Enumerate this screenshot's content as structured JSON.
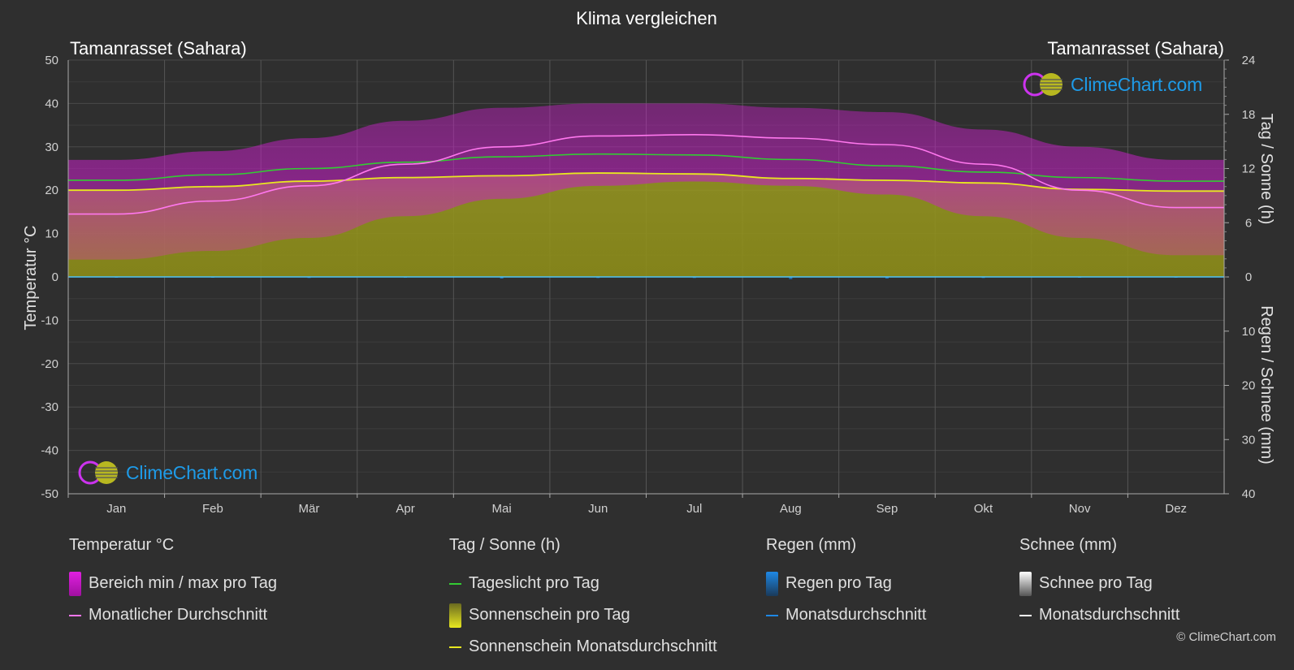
{
  "title": "Klima vergleichen",
  "location_left": "Tamanrasset (Sahara)",
  "location_right": "Tamanrasset (Sahara)",
  "watermark": "ClimeChart.com",
  "copyright": "© ClimeChart.com",
  "colors": {
    "background": "#2f2f2f",
    "temp_range": "#d020d0",
    "temp_avg": "#ff77ee",
    "daylight": "#33cc33",
    "sunshine_fill": "#a8a820",
    "sunshine_avg": "#e8e820",
    "rain": "#1e88e5",
    "snow": "#ffffff"
  },
  "chart_data": {
    "type": "area",
    "months": [
      "Jan",
      "Feb",
      "Mär",
      "Apr",
      "Mai",
      "Jun",
      "Jul",
      "Aug",
      "Sep",
      "Okt",
      "Nov",
      "Dez"
    ],
    "axes": {
      "left": {
        "label": "Temperatur °C",
        "ticks": [
          50,
          40,
          30,
          20,
          10,
          0,
          -10,
          -20,
          -30,
          -40,
          -50
        ],
        "range": [
          -50,
          50
        ]
      },
      "right_top": {
        "label": "Tag / Sonne (h)",
        "ticks": [
          24,
          18,
          12,
          6,
          0
        ],
        "range": [
          0,
          24
        ]
      },
      "right_bottom": {
        "label": "Regen / Schnee (mm)",
        "ticks": [
          0,
          10,
          20,
          30,
          40
        ],
        "range": [
          0,
          40
        ]
      }
    },
    "series": {
      "temp_max": [
        27,
        29,
        32,
        36,
        39,
        40,
        40,
        39,
        38,
        34,
        30,
        27
      ],
      "temp_min": [
        4,
        6,
        9,
        14,
        18,
        21,
        22,
        21,
        19,
        14,
        9,
        5
      ],
      "temp_avg": [
        14.5,
        17.5,
        21,
        26,
        30,
        32.5,
        32.8,
        32,
        30.5,
        26,
        20,
        16
      ],
      "daylight_h": [
        10.7,
        11.3,
        12.0,
        12.7,
        13.3,
        13.6,
        13.5,
        13.0,
        12.3,
        11.6,
        11.0,
        10.6
      ],
      "sunshine_h": [
        9.6,
        10.0,
        10.6,
        11.0,
        11.2,
        11.5,
        11.4,
        10.9,
        10.7,
        10.4,
        9.7,
        9.5
      ],
      "rain_mm": [
        0.1,
        0.1,
        0.2,
        0.1,
        0.3,
        0.2,
        0.2,
        0.4,
        0.3,
        0.2,
        0.1,
        0.1
      ],
      "snow_mm": [
        0,
        0,
        0,
        0,
        0,
        0,
        0,
        0,
        0,
        0,
        0,
        0
      ]
    },
    "grid": true
  },
  "legend": {
    "temperature": {
      "title": "Temperatur °C",
      "range": "Bereich min / max pro Tag",
      "avg": "Monatlicher Durchschnitt"
    },
    "sun": {
      "title": "Tag / Sonne (h)",
      "daylight": "Tageslicht pro Tag",
      "sunshine": "Sonnenschein pro Tag",
      "sunshine_avg": "Sonnenschein Monatsdurchschnitt"
    },
    "rain": {
      "title": "Regen (mm)",
      "per_day": "Regen pro Tag",
      "avg": "Monatsdurchschnitt"
    },
    "snow": {
      "title": "Schnee (mm)",
      "per_day": "Schnee pro Tag",
      "avg": "Monatsdurchschnitt"
    }
  }
}
